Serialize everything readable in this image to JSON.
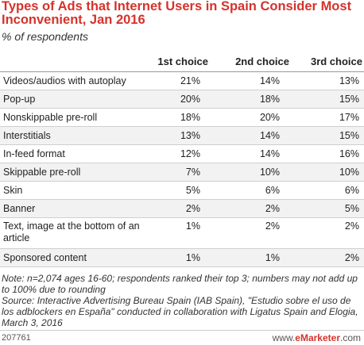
{
  "title": "Types of Ads that Internet Users in Spain Consider Most Inconvenient, Jan 2016",
  "subtitle": "% of respondents",
  "columns": [
    "1st choice",
    "2nd choice",
    "3rd choice"
  ],
  "rows": [
    {
      "label": "Videos/audios with autoplay",
      "values": [
        "21%",
        "14%",
        "13%"
      ]
    },
    {
      "label": "Pop-up",
      "values": [
        "20%",
        "18%",
        "15%"
      ]
    },
    {
      "label": "Nonskippable pre-roll",
      "values": [
        "18%",
        "20%",
        "17%"
      ]
    },
    {
      "label": "Interstitials",
      "values": [
        "13%",
        "14%",
        "15%"
      ]
    },
    {
      "label": "In-feed format",
      "values": [
        "12%",
        "14%",
        "16%"
      ]
    },
    {
      "label": "Skippable pre-roll",
      "values": [
        "7%",
        "10%",
        "10%"
      ]
    },
    {
      "label": "Skin",
      "values": [
        "5%",
        "6%",
        "6%"
      ]
    },
    {
      "label": "Banner",
      "values": [
        "2%",
        "2%",
        "5%"
      ]
    },
    {
      "label": "Text, image at the bottom of an article",
      "values": [
        "1%",
        "2%",
        "2%"
      ]
    },
    {
      "label": "Sponsored content",
      "values": [
        "1%",
        "1%",
        "2%"
      ]
    }
  ],
  "note": "Note: n=2,074 ages 16-60; respondents ranked their top 3; numbers may not add up to 100% due to rounding",
  "source": "Source: Interactive Advertising Bureau Spain (IAB Spain), \"Estudio sobre el uso de los adblockers en España\" conducted in collaboration with Ligatus Spain and Elogia, March 3, 2016",
  "footer": {
    "id": "207761",
    "brand_prefix": "www.",
    "brand_name": "eMarketer",
    "brand_suffix": ".com"
  },
  "colors": {
    "title": "#d6322b",
    "row_alt": "#f2f2f2"
  },
  "chart_data": {
    "type": "table",
    "title": "Types of Ads that Internet Users in Spain Consider Most Inconvenient, Jan 2016",
    "subtitle": "% of respondents",
    "columns": [
      "1st choice",
      "2nd choice",
      "3rd choice"
    ],
    "categories": [
      "Videos/audios with autoplay",
      "Pop-up",
      "Nonskippable pre-roll",
      "Interstitials",
      "In-feed format",
      "Skippable pre-roll",
      "Skin",
      "Banner",
      "Text, image at the bottom of an article",
      "Sponsored content"
    ],
    "series": [
      {
        "name": "1st choice",
        "values": [
          21,
          20,
          18,
          13,
          12,
          7,
          5,
          2,
          1,
          1
        ]
      },
      {
        "name": "2nd choice",
        "values": [
          14,
          18,
          20,
          14,
          14,
          10,
          6,
          2,
          2,
          1
        ]
      },
      {
        "name": "3rd choice",
        "values": [
          13,
          15,
          17,
          15,
          16,
          10,
          6,
          5,
          2,
          2
        ]
      }
    ]
  }
}
